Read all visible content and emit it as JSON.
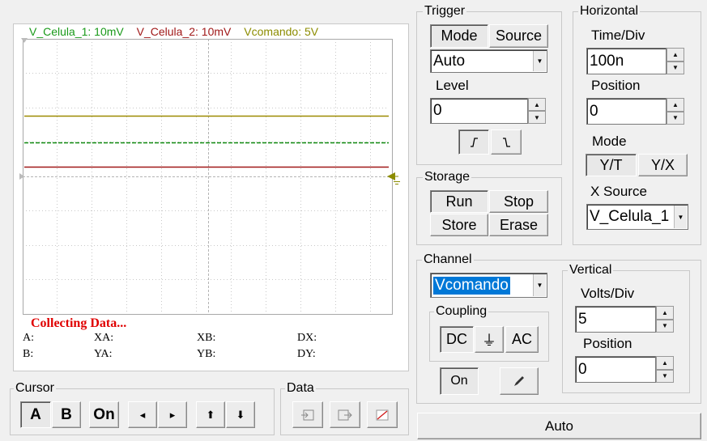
{
  "scope": {
    "legend": [
      {
        "label": "V_Celula_1: 10mV",
        "color": "#1a9a1a"
      },
      {
        "label": "V_Celula_2: 10mV",
        "color": "#a01818"
      },
      {
        "label": "Vcomando: 5V",
        "color": "#8c8c00"
      }
    ],
    "status": "Collecting Data...",
    "readouts": {
      "a": "A:",
      "xa": "XA:",
      "xb": "XB:",
      "dx": "DX:",
      "b": "B:",
      "ya": "YA:",
      "yb": "YB:",
      "dy": "DY:"
    },
    "trace_colors": {
      "vcomando": "#9c8a00",
      "v_celula_1": "#108a10",
      "v_celula_2": "#a01818",
      "grid": "#c8c8c8",
      "marker": "#8c8c00"
    }
  },
  "trigger": {
    "title": "Trigger",
    "mode_label": "Mode",
    "source_label": "Source",
    "mode_value": "Auto",
    "level_label": "Level",
    "level_value": "0",
    "rising_icon": "rising-edge-icon",
    "falling_icon": "falling-edge-icon"
  },
  "horizontal": {
    "title": "Horizontal",
    "time_div_label": "Time/Div",
    "time_div_value": "100n",
    "position_label": "Position",
    "position_value": "0",
    "mode_label": "Mode",
    "yt_label": "Y/T",
    "yx_label": "Y/X",
    "xsource_label": "X Source",
    "xsource_value": "V_Celula_1"
  },
  "storage": {
    "title": "Storage",
    "run_label": "Run",
    "stop_label": "Stop",
    "store_label": "Store",
    "erase_label": "Erase"
  },
  "channel": {
    "title": "Channel",
    "value": "Vcomando",
    "coupling_title": "Coupling",
    "dc_label": "DC",
    "gnd_label": "⏚",
    "ac_label": "AC",
    "on_label": "On",
    "probe_icon": "probe-pen-icon"
  },
  "vertical": {
    "title": "Vertical",
    "volts_div_label": "Volts/Div",
    "volts_div_value": "5",
    "position_label": "Position",
    "position_value": "0"
  },
  "cursor": {
    "title": "Cursor",
    "a_label": "A",
    "b_label": "B",
    "on_label": "On",
    "left_glyph": "◂",
    "right_glyph": "▸",
    "up_glyph": "⬆",
    "down_glyph": "⬇"
  },
  "data": {
    "title": "Data",
    "import_icon": "import-icon",
    "export_icon": "export-icon",
    "plot_icon": "plot-icon"
  },
  "auto_label": "Auto"
}
